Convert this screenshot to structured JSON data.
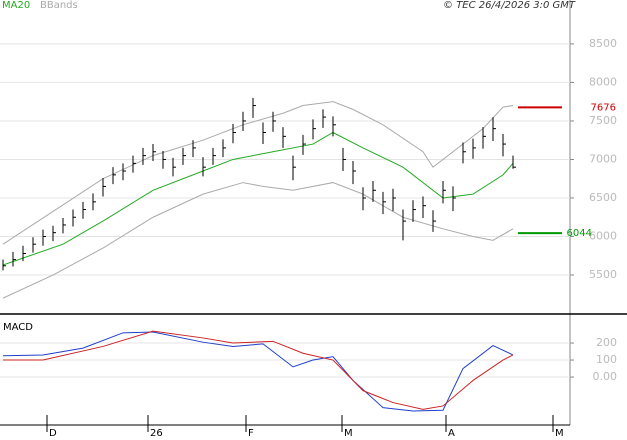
{
  "header": {
    "copyright": "© TEC 26/4/2026 3:0 GMT"
  },
  "chart_data": [
    {
      "type": "ohlc",
      "xlim": [
        -0.3,
        56.7
      ],
      "xticks": [
        {
          "value": 4.4,
          "label": "D"
        },
        {
          "value": 14.5,
          "label": "26"
        },
        {
          "value": 24.3,
          "label": "F"
        },
        {
          "value": 33.9,
          "label": "M"
        },
        {
          "value": 44.3,
          "label": "A"
        },
        {
          "value": 55,
          "label": "M"
        }
      ],
      "ylim": [
        5020,
        9070
      ],
      "yticks": [
        5500,
        6000,
        6500,
        7000,
        7500,
        8000,
        8500
      ],
      "grid": true,
      "bar_color": "#000000",
      "high": [
        5700,
        5800,
        5880,
        5990,
        6090,
        6140,
        6240,
        6350,
        6450,
        6560,
        6760,
        6900,
        6950,
        7050,
        7150,
        7200,
        7110,
        7020,
        7150,
        7250,
        7030,
        7150,
        7260,
        7460,
        7620,
        7800,
        7480,
        7620,
        7420,
        7050,
        7320,
        7520,
        7650,
        7560,
        7150,
        6980,
        6640,
        6720,
        6580,
        6620,
        6350,
        6470,
        6520,
        6340,
        6720,
        6650,
        7220,
        7270,
        7420,
        7550,
        7330,
        7050
      ],
      "low": [
        5560,
        5610,
        5680,
        5790,
        5880,
        5940,
        6040,
        6130,
        6230,
        6340,
        6520,
        6680,
        6730,
        6830,
        6930,
        6980,
        6880,
        6780,
        6930,
        7030,
        6780,
        6930,
        7030,
        7210,
        7370,
        7540,
        7200,
        7360,
        7150,
        6730,
        7060,
        7260,
        7410,
        7300,
        6850,
        6680,
        6340,
        6450,
        6290,
        6330,
        5950,
        6190,
        6240,
        6060,
        6430,
        6330,
        6950,
        7010,
        7140,
        7240,
        7040,
        6880
      ],
      "close": [
        5620,
        5700,
        5780,
        5900,
        6000,
        6050,
        6150,
        6250,
        6350,
        6450,
        6650,
        6800,
        6850,
        6950,
        7050,
        7100,
        7000,
        6900,
        7050,
        7150,
        6900,
        7050,
        7150,
        7350,
        7500,
        7700,
        7350,
        7500,
        7300,
        6900,
        7200,
        7400,
        7550,
        7450,
        7000,
        6850,
        6500,
        6600,
        6450,
        6500,
        6200,
        6350,
        6400,
        6200,
        6600,
        6500,
        7100,
        7150,
        7300,
        7400,
        7200,
        6900
      ],
      "series": [
        {
          "name": "MA20",
          "color": "#22aa22",
          "x": [
            0,
            6,
            10,
            15,
            20,
            23,
            27,
            31,
            33,
            36,
            40,
            44,
            47,
            50,
            51
          ],
          "values": [
            5630,
            5900,
            6200,
            6600,
            6850,
            7000,
            7100,
            7200,
            7350,
            7150,
            6900,
            6500,
            6550,
            6800,
            6950
          ]
        },
        {
          "name": "BBands",
          "color": "#aaaaaa",
          "x": [
            0,
            10,
            15,
            20,
            24,
            28,
            30,
            33,
            35,
            38,
            42,
            43,
            48,
            50,
            51
          ],
          "values": [
            5900,
            6750,
            7050,
            7250,
            7450,
            7600,
            7700,
            7750,
            7650,
            7450,
            7100,
            6900,
            7400,
            7680,
            7700
          ]
        },
        {
          "color": "#aaaaaa",
          "x": [
            0,
            5,
            10,
            15,
            20,
            24,
            26,
            29,
            33,
            36,
            40,
            44,
            47,
            49,
            51
          ],
          "values": [
            5200,
            5500,
            5850,
            6250,
            6550,
            6700,
            6650,
            6600,
            6700,
            6550,
            6250,
            6100,
            6000,
            5950,
            6100
          ]
        }
      ],
      "levels": [
        {
          "value": 7676,
          "color": "#cc0000"
        },
        {
          "value": 6044,
          "color": "#009900"
        }
      ]
    },
    {
      "type": "line",
      "title": "MACD",
      "xlim": [
        -0.3,
        56.7
      ],
      "ylim": [
        -282,
        359
      ],
      "yticks": [
        200,
        100,
        {
          "value": 0,
          "label": "0.00"
        }
      ],
      "series": [
        {
          "color": "#1f3fcc",
          "x": [
            0,
            4,
            8,
            12,
            15,
            20,
            23,
            26,
            29,
            31,
            33,
            35,
            38,
            41,
            44,
            46,
            49,
            51
          ],
          "values": [
            125,
            130,
            170,
            260,
            265,
            205,
            180,
            195,
            60,
            100,
            120,
            -20,
            -180,
            -200,
            -195,
            50,
            185,
            130
          ]
        },
        {
          "color": "#cc2222",
          "x": [
            0,
            4,
            10,
            15,
            20,
            23,
            27,
            30,
            33,
            36,
            39,
            42,
            44,
            47,
            50,
            51
          ],
          "values": [
            100,
            100,
            180,
            270,
            230,
            200,
            210,
            140,
            100,
            -80,
            -150,
            -190,
            -170,
            -20,
            100,
            130
          ]
        }
      ]
    }
  ]
}
